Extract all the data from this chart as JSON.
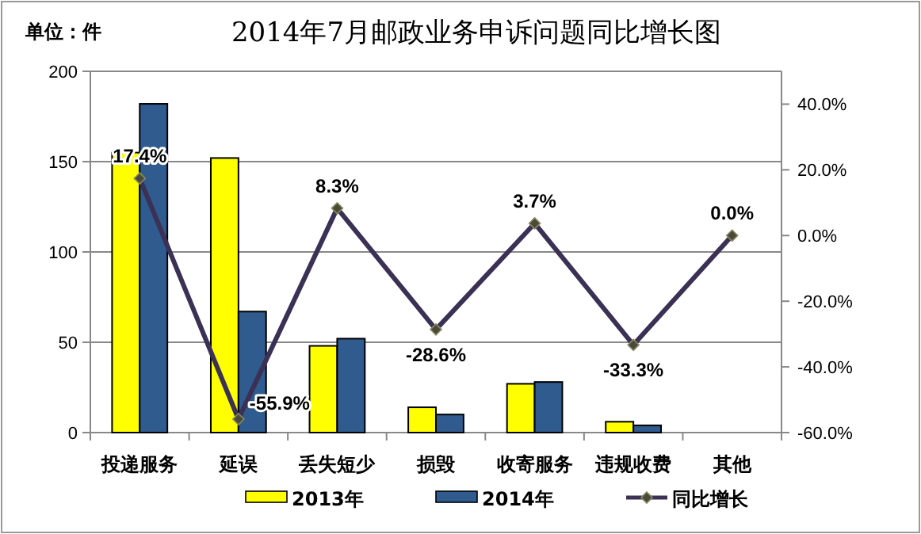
{
  "chart_data": {
    "type": "bar",
    "title": "2014年7月邮政业务申诉问题同比增长图",
    "annotations": [
      "单位：件"
    ],
    "categories": [
      "投递服务",
      "延误",
      "丢失短少",
      "损毁",
      "收寄服务",
      "违规收费",
      "其他"
    ],
    "series": [
      {
        "name": "2013年",
        "color": "#ffff00",
        "values": [
          155,
          152,
          48,
          14,
          27,
          6,
          0
        ]
      },
      {
        "name": "2014年",
        "color": "#2f5b8f",
        "values": [
          182,
          67,
          52,
          10,
          28,
          4,
          0
        ]
      },
      {
        "name": "同比增长",
        "type": "line",
        "axis": "y2",
        "color": "#3b3154",
        "values": [
          17.4,
          -55.9,
          8.3,
          -28.6,
          3.7,
          -33.3,
          0.0
        ],
        "value_labels": [
          "17.4%",
          "-55.9%",
          "8.3%",
          "-28.6%",
          "3.7%",
          "-33.3%",
          "0.0%"
        ]
      }
    ],
    "ylim": [
      0,
      200
    ],
    "yticks": [
      0,
      50,
      100,
      150,
      200
    ],
    "y2lim": [
      -60,
      50
    ],
    "y2ticks": [
      {
        "value": -60,
        "label": "-60.0%"
      },
      {
        "value": -40,
        "label": "-40.0%"
      },
      {
        "value": -20,
        "label": "-20.0%"
      },
      {
        "value": 0,
        "label": "0.0%"
      },
      {
        "value": 20,
        "label": "20.0%"
      },
      {
        "value": 40,
        "label": "40.0%"
      }
    ],
    "grid": "y",
    "legend": "bottom",
    "marker": "diamond",
    "line_style": "solid"
  }
}
